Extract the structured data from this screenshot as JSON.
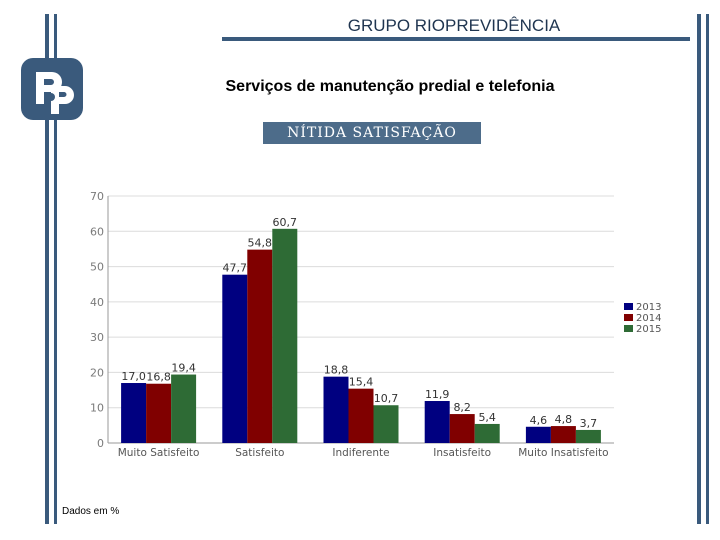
{
  "header": {
    "title": "GRUPO RIOPREVIDÊNCIA"
  },
  "slide": {
    "subtitle": "Serviços de manutenção predial e telefonia",
    "banner": "NÍTIDA SATISFAÇÃO",
    "footnote": "Dados em %"
  },
  "colors": {
    "frame": "#3a5a7c",
    "s2013": "#000080",
    "s2014": "#800000",
    "s2015": "#2e6b35"
  },
  "chart_data": {
    "type": "bar",
    "title": "",
    "xlabel": "",
    "ylabel": "",
    "ylim": [
      0,
      70
    ],
    "yticks": [
      "0",
      "10",
      "20",
      "30",
      "40",
      "50",
      "60",
      "70"
    ],
    "categories": [
      "Muito Satisfeito",
      "Satisfeito",
      "Indiferente",
      "Insatisfeito",
      "Muito Insatisfeito"
    ],
    "series": [
      {
        "name": "2013",
        "values": [
          17.0,
          47.7,
          18.8,
          11.9,
          4.6
        ],
        "labels": [
          "17,0",
          "47,7",
          "18,8",
          "11,9",
          "4,6"
        ]
      },
      {
        "name": "2014",
        "values": [
          16.8,
          54.8,
          15.4,
          8.2,
          4.8
        ],
        "labels": [
          "16,8",
          "54,8",
          "15,4",
          "8,2",
          "4,8"
        ]
      },
      {
        "name": "2015",
        "values": [
          19.4,
          60.7,
          10.7,
          5.4,
          3.7
        ],
        "labels": [
          "19,4",
          "60,7",
          "10,7",
          "5,4",
          "3,7"
        ]
      }
    ],
    "legend": "right",
    "grid": true
  }
}
